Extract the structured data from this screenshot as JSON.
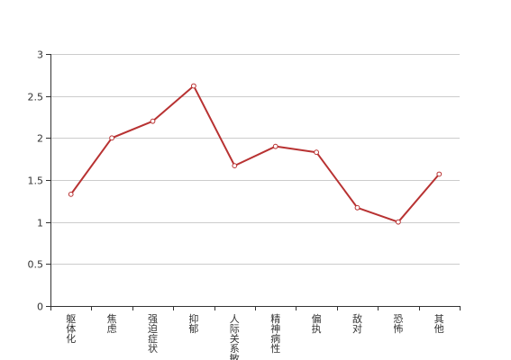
{
  "chart_data": {
    "type": "line",
    "categories": [
      "躯体化",
      "焦虑",
      "强迫症状",
      "抑郁",
      "人际关系敏感",
      "精神病性",
      "偏执",
      "敌对",
      "恐怖",
      "其他"
    ],
    "values": [
      1.33,
      2.0,
      2.2,
      2.62,
      1.67,
      1.9,
      1.83,
      1.17,
      1.0,
      1.57
    ],
    "ylim": [
      0,
      3
    ],
    "yticks": [
      0,
      0.5,
      1,
      1.5,
      2,
      2.5,
      3
    ],
    "ytick_labels": [
      "0",
      "0.5",
      "1",
      "1.5",
      "2",
      "2.5",
      "3"
    ],
    "grid": true,
    "legend": "none",
    "line_color": "#b83232",
    "marker_fill": "#ffffff",
    "grid_color": "#cccccc",
    "axis_color": "#333333"
  }
}
